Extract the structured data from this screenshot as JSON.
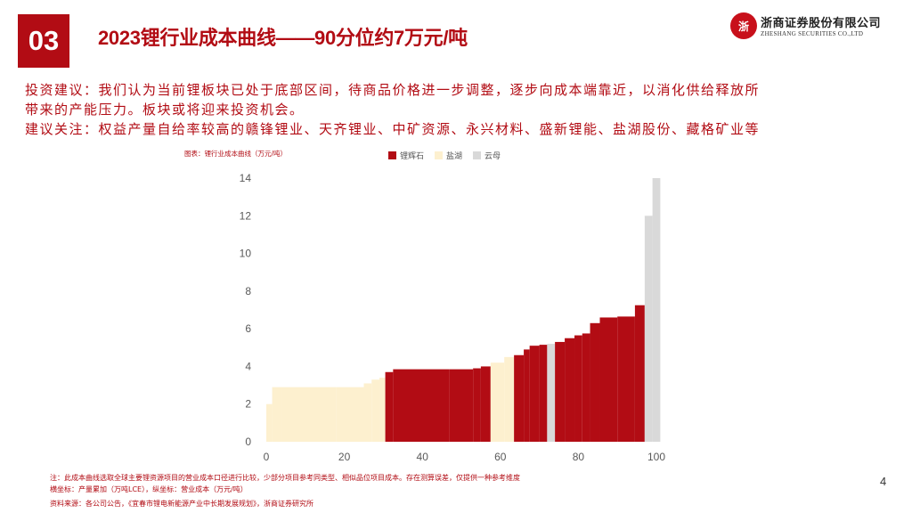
{
  "header": {
    "section_number": "03",
    "title": "2023锂行业成本曲线——90分位约7万元/吨"
  },
  "logo": {
    "mark_text": "浙",
    "name_cn": "浙商证券股份有限公司",
    "name_en": "ZHESHANG SECURITIES CO.,LTD"
  },
  "body": {
    "line1": "投资建议：我们认为当前锂板块已处于底部区间，待商品价格进一步调整，逐步向成本端靠近，以消化供给释放所",
    "line2": "带来的产能压力。板块或将迎来投资机会。",
    "line3": "建议关注：权益产量自给率较高的赣锋锂业、天齐锂业、中矿资源、永兴材料、盛新锂能、盐湖股份、藏格矿业等"
  },
  "chart_caption": "图表：锂行业成本曲线（万元/吨）",
  "chart_data": {
    "type": "bar",
    "title": "图表：锂行业成本曲线（万元/吨）",
    "xlabel": "",
    "ylabel": "",
    "xlim": [
      0,
      100
    ],
    "ylim": [
      0,
      14
    ],
    "x_ticks": [
      0,
      20,
      40,
      60,
      80,
      100
    ],
    "y_ticks": [
      0,
      2,
      4,
      6,
      8,
      10,
      12,
      14
    ],
    "grid": false,
    "legend_position": "top",
    "series": [
      {
        "name": "锂辉石",
        "color": "#b20c14"
      },
      {
        "name": "盐湖",
        "color": "#fdf0cf"
      },
      {
        "name": "云母",
        "color": "#d9d9d9"
      }
    ],
    "bars": [
      {
        "x0": 0,
        "x1": 1.5,
        "y": 2.0,
        "series": "盐湖"
      },
      {
        "x0": 1.5,
        "x1": 4,
        "y": 2.9,
        "series": "盐湖"
      },
      {
        "x0": 4,
        "x1": 18,
        "y": 2.9,
        "series": "盐湖"
      },
      {
        "x0": 18,
        "x1": 25,
        "y": 2.9,
        "series": "盐湖"
      },
      {
        "x0": 25,
        "x1": 27,
        "y": 3.1,
        "series": "盐湖"
      },
      {
        "x0": 27,
        "x1": 29,
        "y": 3.3,
        "series": "盐湖"
      },
      {
        "x0": 29,
        "x1": 30.5,
        "y": 3.4,
        "series": "盐湖"
      },
      {
        "x0": 30.5,
        "x1": 32.5,
        "y": 3.7,
        "series": "锂辉石"
      },
      {
        "x0": 32.5,
        "x1": 47,
        "y": 3.85,
        "series": "锂辉石"
      },
      {
        "x0": 47,
        "x1": 53,
        "y": 3.85,
        "series": "锂辉石"
      },
      {
        "x0": 53,
        "x1": 55,
        "y": 3.9,
        "series": "锂辉石"
      },
      {
        "x0": 55,
        "x1": 57.5,
        "y": 4.0,
        "series": "锂辉石"
      },
      {
        "x0": 57.5,
        "x1": 61,
        "y": 4.2,
        "series": "盐湖"
      },
      {
        "x0": 61,
        "x1": 63.5,
        "y": 4.5,
        "series": "盐湖"
      },
      {
        "x0": 63.5,
        "x1": 66,
        "y": 4.6,
        "series": "锂辉石"
      },
      {
        "x0": 66,
        "x1": 67.5,
        "y": 4.9,
        "series": "锂辉石"
      },
      {
        "x0": 67.5,
        "x1": 70,
        "y": 5.1,
        "series": "锂辉石"
      },
      {
        "x0": 70,
        "x1": 72,
        "y": 5.15,
        "series": "锂辉石"
      },
      {
        "x0": 72,
        "x1": 74,
        "y": 5.2,
        "series": "云母"
      },
      {
        "x0": 74,
        "x1": 76.5,
        "y": 5.3,
        "series": "锂辉石"
      },
      {
        "x0": 76.5,
        "x1": 79,
        "y": 5.5,
        "series": "锂辉石"
      },
      {
        "x0": 79,
        "x1": 81,
        "y": 5.65,
        "series": "锂辉石"
      },
      {
        "x0": 81,
        "x1": 83,
        "y": 5.75,
        "series": "锂辉石"
      },
      {
        "x0": 83,
        "x1": 85.5,
        "y": 6.3,
        "series": "锂辉石"
      },
      {
        "x0": 85.5,
        "x1": 90,
        "y": 6.6,
        "series": "锂辉石"
      },
      {
        "x0": 90,
        "x1": 94.5,
        "y": 6.65,
        "series": "锂辉石"
      },
      {
        "x0": 94.5,
        "x1": 97,
        "y": 7.25,
        "series": "锂辉石"
      },
      {
        "x0": 97,
        "x1": 99,
        "y": 12.0,
        "series": "云母"
      },
      {
        "x0": 99,
        "x1": 101,
        "y": 14.0,
        "series": "云母"
      }
    ]
  },
  "footnotes": {
    "note": "注：此成本曲线选取全球主要锂资源项目的营业成本口径进行比较，少部分项目参考同类型、相似品位项目成本。存在测算误差，仅提供一种参考维度",
    "axes": "横坐标：产量累加（万吨LCE），纵坐标：营业成本（万元/吨）",
    "source": "资料来源：各公司公告，《宜春市锂电新能源产业中长期发展规划》，浙商证券研究所"
  },
  "page_number": "4"
}
